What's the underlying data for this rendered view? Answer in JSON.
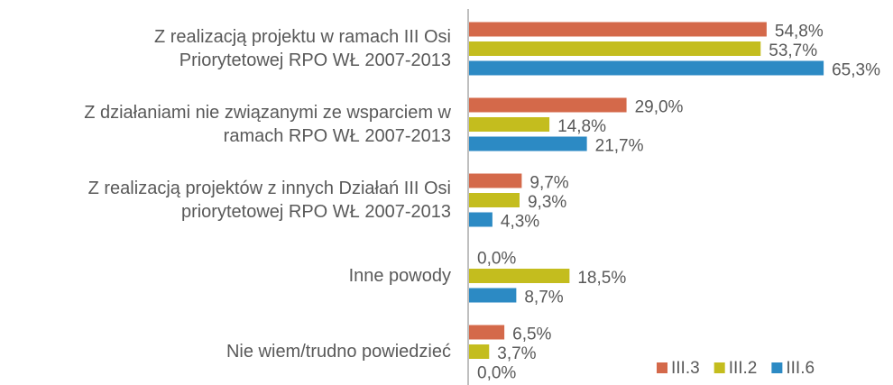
{
  "chart_data": {
    "type": "hbar",
    "categories": [
      "Z realizacją projektu w ramach III Osi\nPriorytetowej RPO WŁ 2007-2013",
      "Z działaniami nie związanymi ze wsparciem w\nramach RPO WŁ 2007-2013",
      "Z realizacją projektów z innych Działań III Osi\npriorytetowej RPO WŁ 2007-2013",
      "Inne powody",
      "Nie wiem/trudno powiedzieć"
    ],
    "series": [
      {
        "name": "III.3",
        "color": "#d4694a",
        "values": [
          54.8,
          29.0,
          9.7,
          0.0,
          6.5
        ],
        "value_labels": [
          "54,8%",
          "29,0%",
          "9,7%",
          "0,0%",
          "6,5%"
        ]
      },
      {
        "name": "III.2",
        "color": "#c4bd1e",
        "values": [
          53.7,
          14.8,
          9.3,
          18.5,
          3.7
        ],
        "value_labels": [
          "53,7%",
          "14,8%",
          "9,3%",
          "18,5%",
          "3,7%"
        ]
      },
      {
        "name": "III.6",
        "color": "#2c8ac4",
        "values": [
          65.3,
          21.7,
          4.3,
          8.7,
          0.0
        ],
        "value_labels": [
          "65,3%",
          "21,7%",
          "4,3%",
          "8,7%",
          "0,0%"
        ]
      }
    ],
    "legend": "lower right"
  }
}
